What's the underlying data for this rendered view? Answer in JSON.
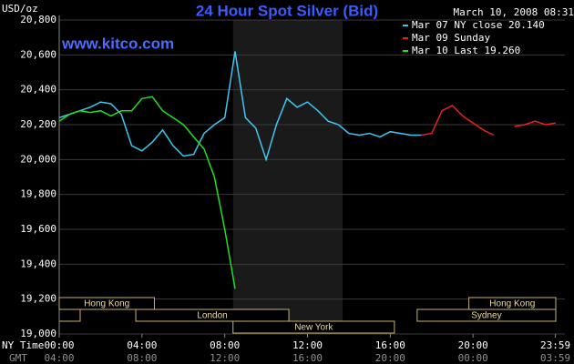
{
  "chart_data": {
    "type": "line",
    "title": "24 Hour Spot Silver (Bid)",
    "y_label": "USD/oz",
    "timestamp": "March 10, 2008 08:31",
    "watermark": "www.kitco.com",
    "x_label": "NY Time",
    "x2_label": "GMT",
    "x": [
      0,
      0.5,
      1,
      1.5,
      2,
      2.5,
      3,
      3.5,
      4,
      4.5,
      5,
      5.5,
      6,
      6.5,
      7,
      7.5,
      8,
      8.5,
      9,
      9.5,
      10,
      10.5,
      11,
      11.5,
      12,
      12.5,
      13,
      13.5,
      14,
      14.5,
      15,
      15.5,
      16,
      16.5,
      17,
      17.5,
      18,
      18.5,
      19,
      19.5,
      20,
      20.5,
      21,
      21.5,
      22,
      22.5,
      23,
      23.5,
      24
    ],
    "xlim": [
      0,
      24
    ],
    "xticks": [
      {
        "value": 0,
        "label": "00:00"
      },
      {
        "value": 4,
        "label": "04:00"
      },
      {
        "value": 8,
        "label": "08:00"
      },
      {
        "value": 12,
        "label": "12:00"
      },
      {
        "value": 16,
        "label": "16:00"
      },
      {
        "value": 20,
        "label": "20:00"
      },
      {
        "value": 23.983,
        "label": "23:59"
      }
    ],
    "gmt_labels": [
      "04:00",
      "08:00",
      "12:00",
      "16:00",
      "20:00",
      "00:00",
      "03:59"
    ],
    "ylim": [
      19000,
      20800
    ],
    "yticks": [
      {
        "value": 19000,
        "label": "19,000"
      },
      {
        "value": 19200,
        "label": "19,200"
      },
      {
        "value": 19400,
        "label": "19,400"
      },
      {
        "value": 19600,
        "label": "19,600"
      },
      {
        "value": 19800,
        "label": "19,800"
      },
      {
        "value": 20000,
        "label": "20,000"
      },
      {
        "value": 20200,
        "label": "20,200"
      },
      {
        "value": 20400,
        "label": "20,400"
      },
      {
        "value": 20600,
        "label": "20,600"
      },
      {
        "value": 20800,
        "label": "20,800"
      }
    ],
    "grid": true,
    "shaded_range": [
      8.4,
      13.7
    ],
    "sessions": [
      {
        "label": "Hong Kong",
        "start": 0,
        "end": 4.6
      },
      {
        "label": "London",
        "start": 3.7,
        "end": 11.1
      },
      {
        "label": "New York",
        "start": 8.4,
        "end": 16.2
      },
      {
        "label": "Hong Kong",
        "start": 19.8,
        "end": 24
      },
      {
        "label": "Sydney",
        "start": 17.3,
        "end": 24
      }
    ],
    "series": [
      {
        "name": "Mar 07 NY close 20.140",
        "color": "#3cc8f4",
        "values": [
          20240,
          20260,
          20280,
          20300,
          20330,
          20320,
          20260,
          20080,
          20050,
          20100,
          20170,
          20080,
          20020,
          20030,
          20150,
          20200,
          20240,
          20620,
          20240,
          20180,
          20000,
          20200,
          20350,
          20300,
          20330,
          20280,
          20220,
          20200,
          20150,
          20140,
          20150,
          20130,
          20160,
          20150,
          20140,
          20140,
          null,
          null,
          null,
          null,
          null,
          null,
          null,
          null,
          null,
          null,
          null,
          null,
          null
        ]
      },
      {
        "name": "Mar 09 Sunday",
        "color": "#e82020",
        "values": [
          null,
          null,
          null,
          null,
          null,
          null,
          null,
          null,
          null,
          null,
          null,
          null,
          null,
          null,
          null,
          null,
          null,
          null,
          null,
          null,
          null,
          null,
          null,
          null,
          null,
          null,
          null,
          null,
          null,
          null,
          null,
          null,
          null,
          null,
          null,
          20140,
          20150,
          20280,
          20310,
          20250,
          20210,
          20170,
          20140,
          null,
          20190,
          20200,
          20220,
          20200,
          20210
        ]
      },
      {
        "name": "Mar 10 Last 19.260",
        "color": "#20e020",
        "values": [
          20220,
          20260,
          20280,
          20270,
          20280,
          20250,
          20280,
          20280,
          20350,
          20360,
          20280,
          20240,
          20200,
          20130,
          20060,
          19900,
          19600,
          19260,
          null,
          null,
          null,
          null,
          null,
          null,
          null,
          null,
          null,
          null,
          null,
          null,
          null,
          null,
          null,
          null,
          null,
          null,
          null,
          null,
          null,
          null,
          null,
          null,
          null,
          null,
          null,
          null,
          null,
          null,
          null
        ]
      }
    ]
  }
}
